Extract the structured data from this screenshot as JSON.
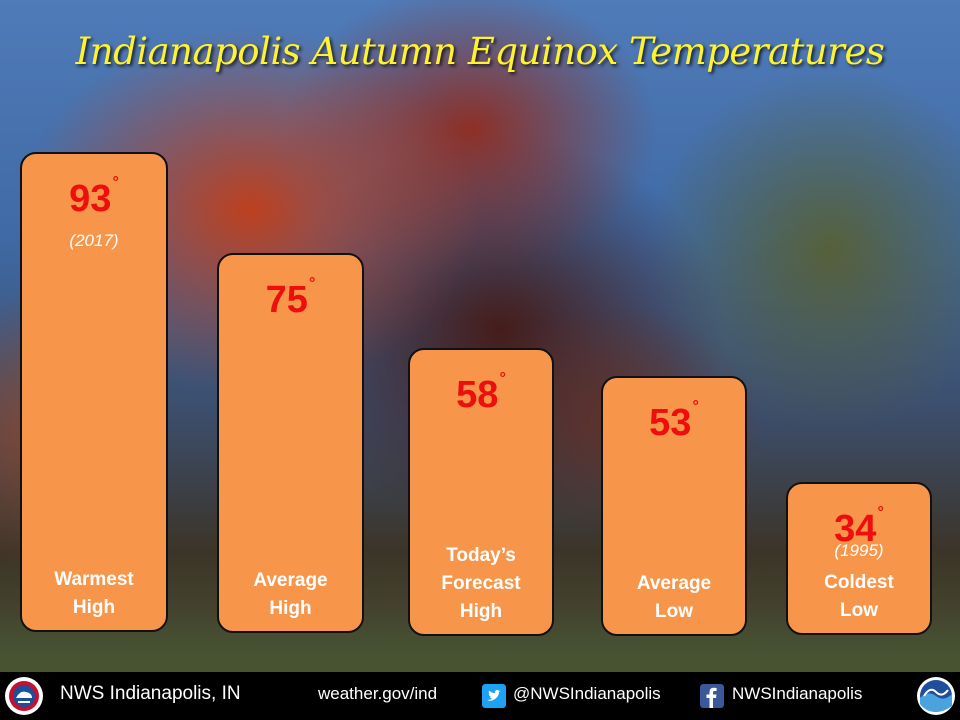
{
  "title": "Indianapolis Autumn Equinox Temperatures",
  "degree_symbol": "°",
  "chart_data": {
    "type": "bar",
    "title": "Indianapolis Autumn Equinox Temperatures",
    "unit": "°",
    "categories": [
      [
        "Warmest",
        "High"
      ],
      [
        "Average",
        "High"
      ],
      [
        "Today’s",
        "Forecast",
        "High"
      ],
      [
        "Average",
        "Low"
      ],
      [
        "Coldest",
        "Low"
      ]
    ],
    "values": [
      93,
      75,
      58,
      53,
      34
    ],
    "years": [
      "(2017)",
      "",
      "",
      "",
      "(1995)"
    ],
    "bar_color": "#f7964a",
    "value_color": "#ee0e0e"
  },
  "footer": {
    "office": "NWS Indianapolis, IN",
    "website": "weather.gov/ind",
    "twitter": "@NWSIndianapolis",
    "facebook": "NWSIndianapolis",
    "twitter_icon": "twitter-icon",
    "facebook_icon": "facebook-icon",
    "left_logo": "nws-logo",
    "right_logo": "noaa-logo"
  }
}
